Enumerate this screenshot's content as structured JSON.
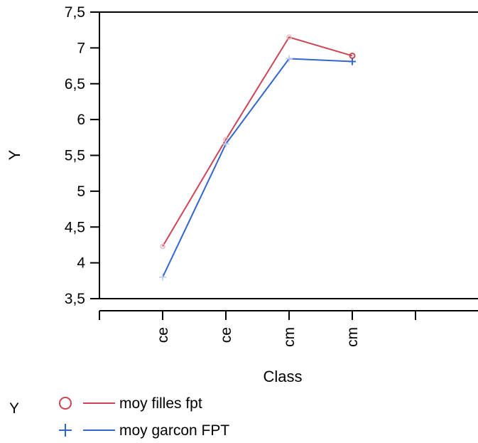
{
  "chart_data": {
    "type": "line",
    "title": "",
    "xlabel": "Class",
    "ylabel": "Y",
    "categories": [
      "ce",
      "ce",
      "cm",
      "cm"
    ],
    "ylim": [
      3.5,
      7.5
    ],
    "y_ticks": [
      3.5,
      4,
      4.5,
      5,
      5.5,
      6,
      6.5,
      7,
      7.5
    ],
    "y_tick_labels": [
      "3,5",
      "4",
      "4,5",
      "5",
      "5,5",
      "6",
      "6,5",
      "7",
      "7,5"
    ],
    "grid": false,
    "legend_position": "bottom-left",
    "legend_title": "Y",
    "series": [
      {
        "name": "moy filles fpt",
        "values": [
          4.23,
          5.72,
          7.15,
          6.89
        ],
        "color": "#cc4455",
        "marker": "circle"
      },
      {
        "name": "moy garcon FPT",
        "values": [
          3.8,
          5.66,
          6.85,
          6.81
        ],
        "color": "#3366cc",
        "marker": "plus"
      }
    ]
  }
}
